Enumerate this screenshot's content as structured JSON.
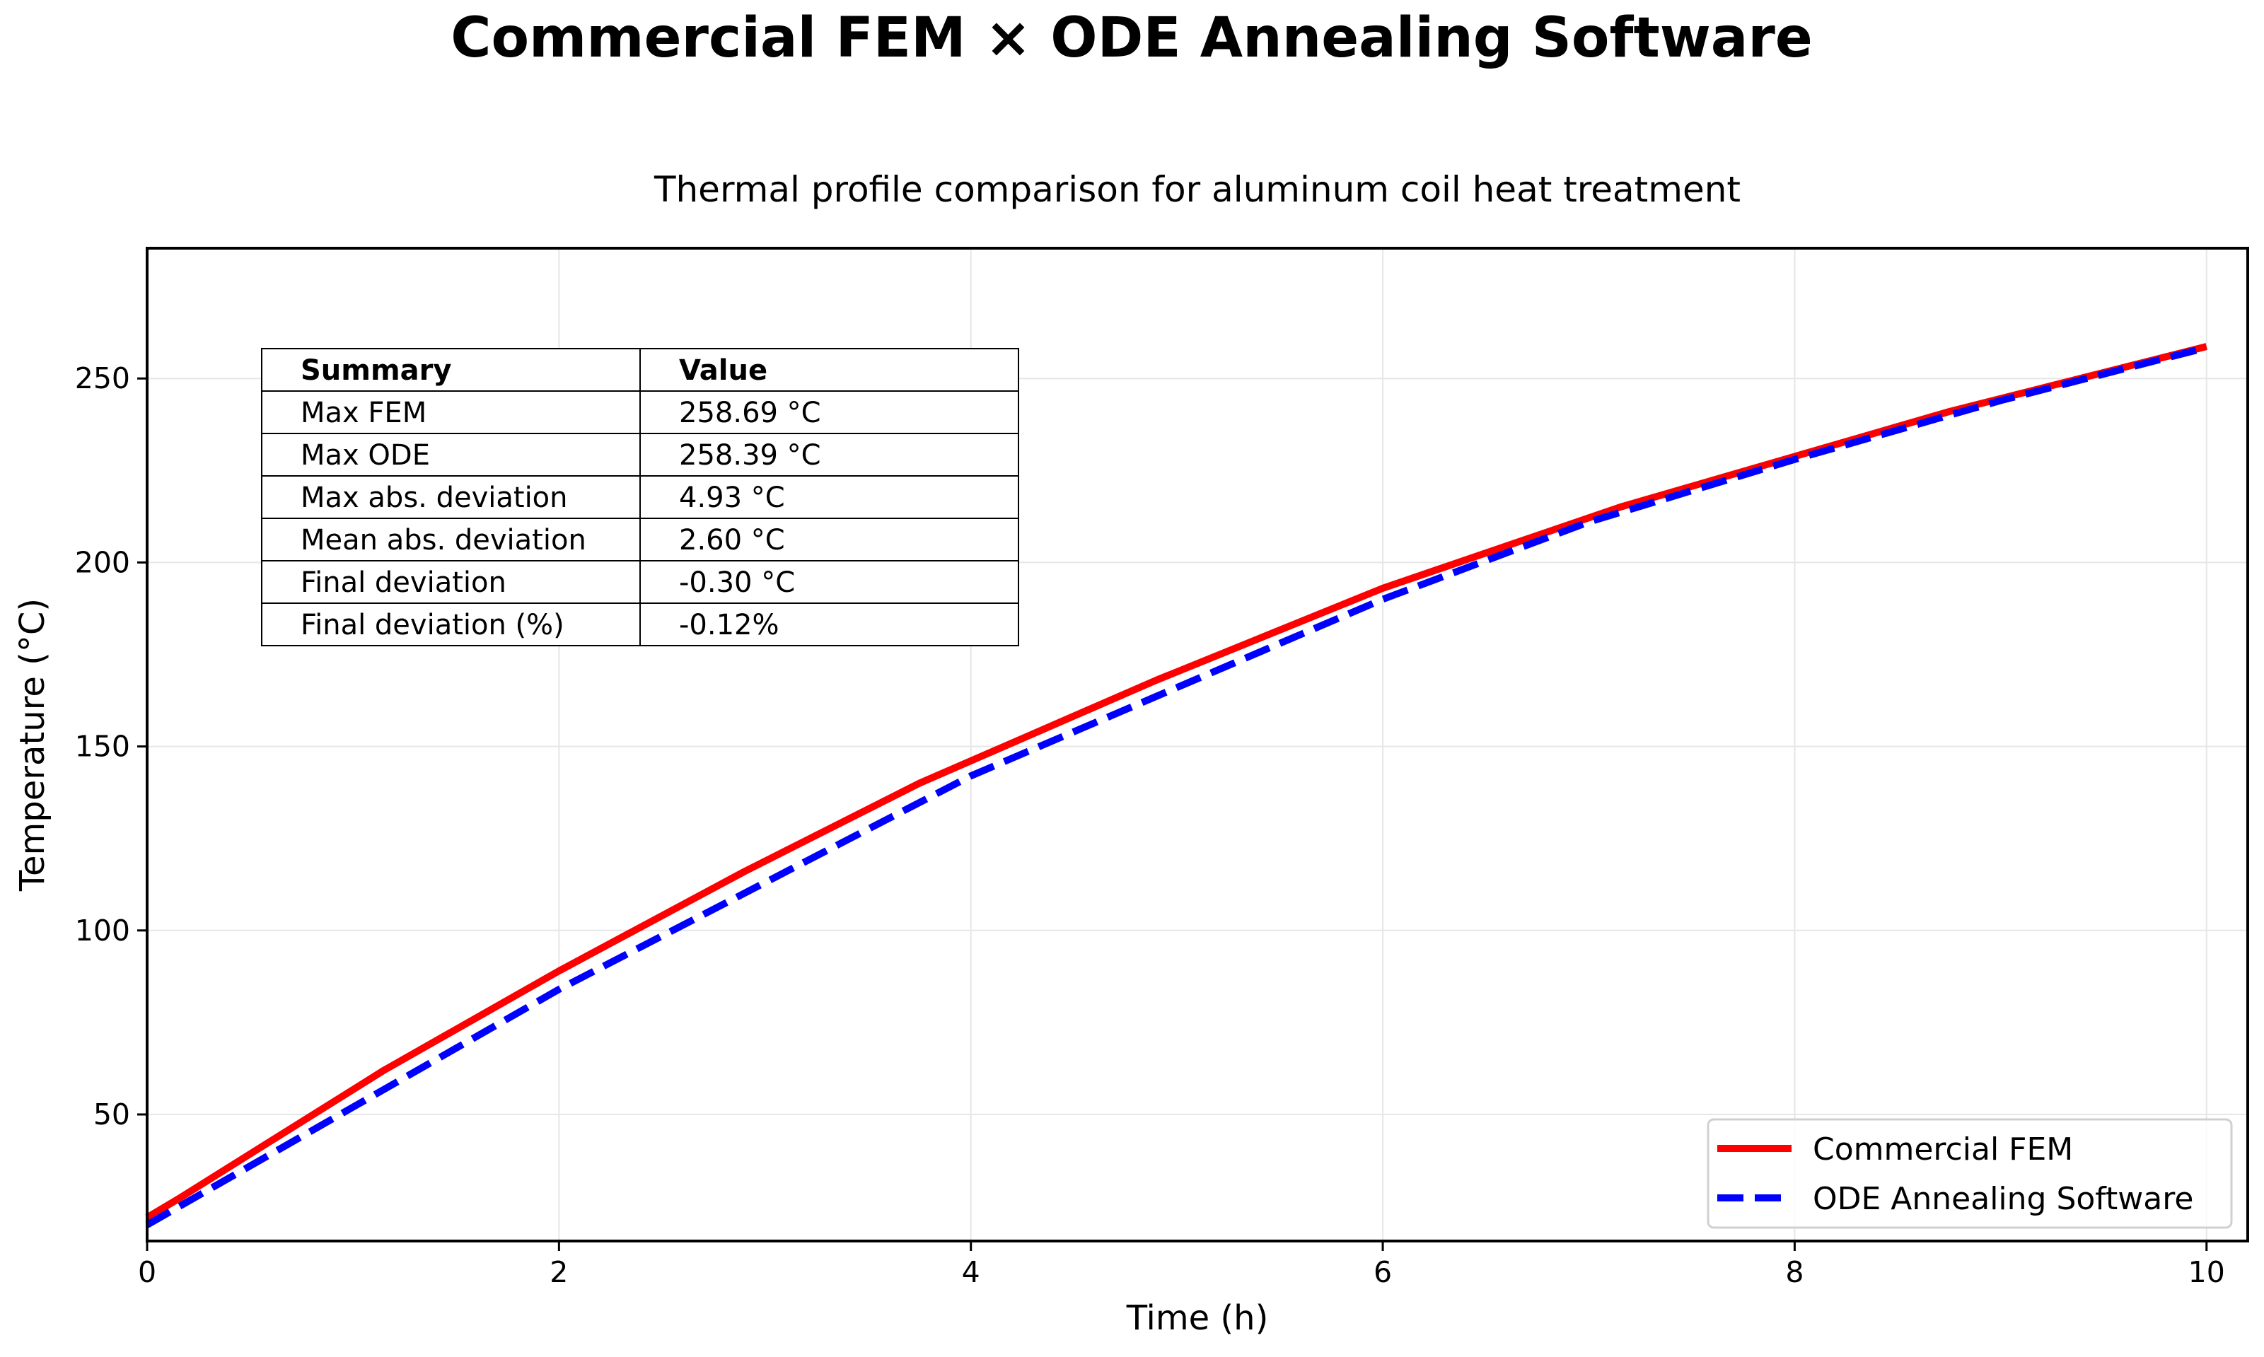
{
  "title": "Commercial FEM × ODE Annealing Software",
  "chart_data": {
    "type": "line",
    "title": "Thermal profile comparison for aluminum coil heat treatment",
    "xlabel": "Time (h)",
    "ylabel": "Temperature (°C)",
    "xlim": [
      0,
      10.2
    ],
    "ylim": [
      15.6,
      285.4
    ],
    "xticks": [
      "0",
      "2",
      "4",
      "6",
      "8",
      "10"
    ],
    "yticks": [
      "50",
      "100",
      "150",
      "200",
      "250"
    ],
    "grid": true,
    "legend_position": "bottom-right",
    "series": [
      {
        "name": "Commercial FEM",
        "color": "#ff0000",
        "style": "solid",
        "x": [
          0,
          0.15,
          1.15,
          2.0,
          2.9,
          3.75,
          4.9,
          6.0,
          7.15,
          8.75,
          10.0
        ],
        "y": [
          22,
          27,
          62,
          89,
          116,
          140,
          168,
          193,
          215,
          241,
          258.69
        ]
      },
      {
        "name": "ODE Annealing Software",
        "color": "#0000ff",
        "style": "dashed",
        "x": [
          0,
          1,
          2,
          3,
          4,
          5,
          6,
          7,
          8,
          9,
          10
        ],
        "y": [
          20,
          52,
          84,
          113,
          142,
          166,
          190,
          211,
          228,
          244,
          258.39
        ]
      }
    ],
    "table": {
      "headers": [
        "Summary",
        "Value"
      ],
      "rows": [
        [
          "Max FEM",
          "258.69 °C"
        ],
        [
          "Max ODE",
          "258.39 °C"
        ],
        [
          "Max abs. deviation",
          "4.93 °C"
        ],
        [
          "Mean abs. deviation",
          "2.60 °C"
        ],
        [
          "Final deviation",
          "-0.30 °C"
        ],
        [
          "Final deviation (%)",
          "-0.12%"
        ]
      ]
    }
  }
}
